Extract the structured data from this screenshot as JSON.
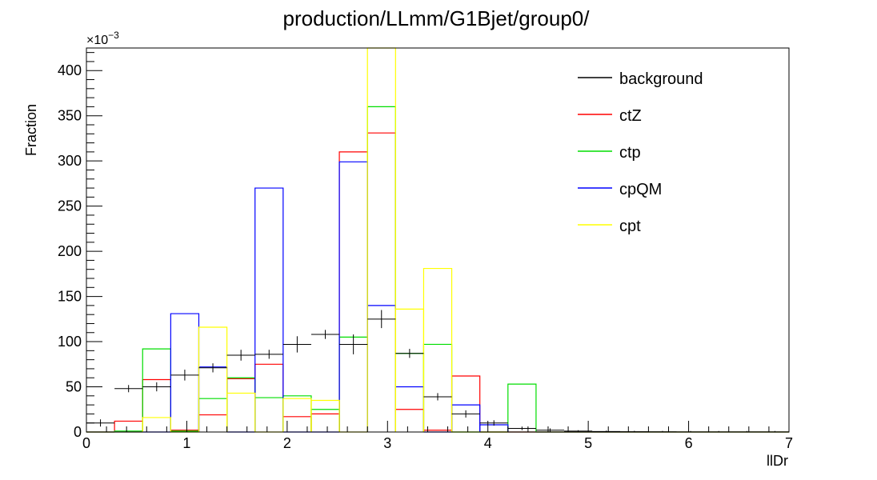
{
  "chart_data": {
    "type": "histogram",
    "title": "production/LLmm/G1Bjet/group0/",
    "xlabel": "llDr",
    "ylabel": "Fraction",
    "y_scale_label_base": "×10",
    "y_scale_label_exp": "−3",
    "xlim": [
      0,
      7
    ],
    "ylim": [
      0,
      425
    ],
    "x_ticks": [
      "0",
      "1",
      "2",
      "3",
      "4",
      "5",
      "6",
      "7"
    ],
    "y_ticks": [
      "0",
      "50",
      "100",
      "150",
      "200",
      "250",
      "300",
      "350",
      "400"
    ],
    "bin_edges": [
      0,
      0.28,
      0.56,
      0.84,
      1.12,
      1.4,
      1.68,
      1.96,
      2.24,
      2.52,
      2.8,
      3.08,
      3.36,
      3.64,
      3.92,
      4.2,
      4.48,
      4.76,
      5.04,
      5.32,
      5.6,
      5.88,
      6.16,
      6.44,
      6.72,
      7.0
    ],
    "legend": {
      "position": "top-right",
      "entries": [
        "background",
        "ctZ",
        "ctp",
        "cpQM",
        "cpt"
      ]
    },
    "series": [
      {
        "name": "background",
        "style": "points",
        "color": "#000000",
        "values": [
          10,
          48,
          50,
          63,
          71,
          85,
          86,
          97,
          108,
          97,
          125,
          87,
          39,
          20,
          10,
          4,
          2,
          1,
          0.5,
          0.3,
          0.2,
          0.1,
          0.1,
          0.1,
          0.1
        ],
        "errors": [
          4,
          4,
          5,
          6,
          5,
          6,
          5,
          9,
          5,
          11,
          10,
          5,
          4,
          4,
          3,
          2,
          2,
          1,
          1,
          1,
          1,
          1,
          1,
          1,
          1
        ]
      },
      {
        "name": "ctZ",
        "style": "step",
        "color": "#ff0000",
        "values": [
          0,
          12,
          58,
          2,
          19,
          59,
          75,
          17,
          20,
          310,
          331,
          25,
          2,
          62,
          0,
          0,
          0,
          0,
          0,
          0,
          0,
          0,
          0,
          0,
          0
        ]
      },
      {
        "name": "ctp",
        "style": "step",
        "color": "#00dd00",
        "values": [
          0,
          1,
          92,
          1,
          37,
          60,
          38,
          40,
          25,
          105,
          360,
          87,
          97,
          0,
          0,
          53,
          0,
          0,
          0,
          0,
          0,
          0,
          0,
          0,
          0
        ]
      },
      {
        "name": "cpQM",
        "style": "step",
        "color": "#0000ff",
        "values": [
          0,
          0,
          0,
          131,
          72,
          0,
          270,
          0,
          0,
          299,
          140,
          50,
          0,
          30,
          8,
          0,
          0,
          0,
          0,
          0,
          0,
          0,
          0,
          0,
          0
        ]
      },
      {
        "name": "cpt",
        "style": "step",
        "color": "#ffff00",
        "values": [
          0,
          0,
          16,
          0,
          116,
          43,
          0,
          37,
          35,
          0,
          425,
          136,
          181,
          0,
          0,
          0,
          0,
          0,
          0,
          0,
          0,
          0,
          0,
          0,
          0
        ]
      }
    ]
  }
}
